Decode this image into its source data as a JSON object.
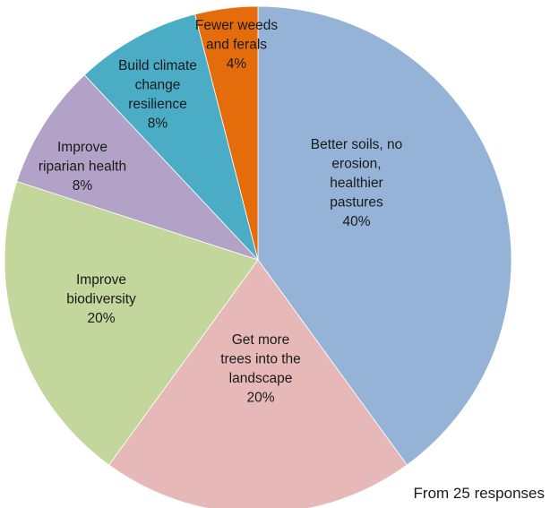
{
  "chart_data": {
    "type": "pie",
    "title": "",
    "start": "12 o'clock",
    "direction": "clockwise",
    "legend": "none",
    "slices": [
      {
        "label_lines": [
          "Better soils, no",
          "erosion,",
          "healthier",
          "pastures"
        ],
        "value": 40,
        "value_label": "40%",
        "color": "#95B3D7"
      },
      {
        "label_lines": [
          "Get more",
          "trees into the",
          "landscape"
        ],
        "value": 20,
        "value_label": "20%",
        "color": "#E6B9B8"
      },
      {
        "label_lines": [
          "Improve",
          "biodiversity"
        ],
        "value": 20,
        "value_label": "20%",
        "color": "#C3D69B"
      },
      {
        "label_lines": [
          "Improve",
          "riparian health"
        ],
        "value": 8,
        "value_label": "8%",
        "color": "#B3A2C7"
      },
      {
        "label_lines": [
          "Build climate",
          "change",
          "resilience"
        ],
        "value": 8,
        "value_label": "8%",
        "color": "#4BACC6"
      },
      {
        "label_lines": [
          "Fewer weeds",
          "and ferals"
        ],
        "value": 4,
        "value_label": "4%",
        "color": "#E46C0A"
      }
    ]
  },
  "footnote": "From 25 responses"
}
